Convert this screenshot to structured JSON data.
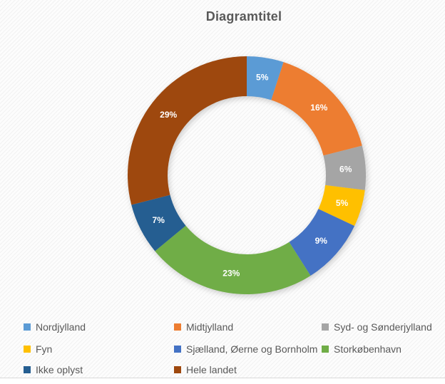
{
  "title": "Diagramtitel",
  "chart_data": {
    "type": "pie",
    "subtype": "donut",
    "title": "Diagramtitel",
    "unit": "%",
    "legend_position": "bottom",
    "label_style": "percent-inside-white",
    "categories": [
      "Nordjylland",
      "Midtjylland",
      "Syd- og Sønderjylland",
      "Fyn",
      "Sjælland, Øerne og Bornholm",
      "Storkøbenhavn",
      "Ikke oplyst",
      "Hele landet"
    ],
    "values": [
      5,
      16,
      6,
      5,
      9,
      23,
      7,
      29
    ],
    "labels": [
      "5%",
      "16%",
      "6%",
      "5%",
      "9%",
      "23%",
      "7%",
      "29%"
    ],
    "colors": [
      "#5B9BD5",
      "#ED7D31",
      "#A5A5A5",
      "#FFC000",
      "#4472C4",
      "#70AD47",
      "#255E91",
      "#9E480E"
    ],
    "label_color": "#FFFFFF",
    "title_color": "#595959",
    "legend_text_color": "#595959",
    "start_angle_deg": 0,
    "direction": "clockwise"
  }
}
